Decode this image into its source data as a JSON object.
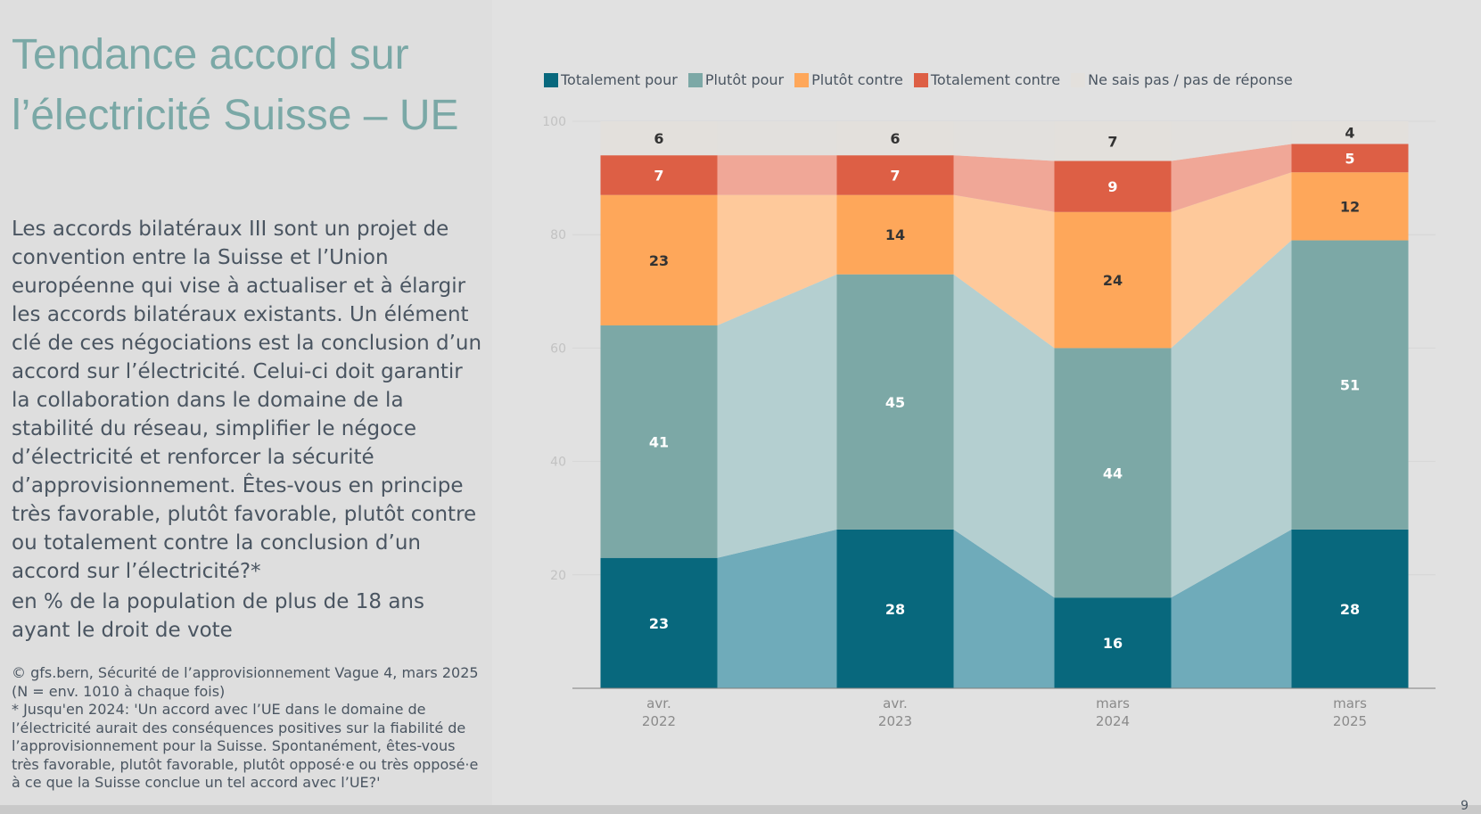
{
  "slide": {
    "title": "Tendance accord sur l’électricité Suisse – UE",
    "description": "Les accords bilatéraux III sont un projet de convention entre la Suisse et l’Union européenne qui vise à actualiser et à élargir les accords bilatéraux existants. Un élément clé de ces négociations est la conclusion d’un accord sur l’électricité. Celui-ci doit garantir la collaboration dans le domaine de la stabilité du réseau, simplifier le négoce d’électricité et renforcer la sécurité d’approvisionnement. Êtes-vous en principe très favorable, plutôt favorable, plutôt contre ou totalement contre la conclusion d’un accord sur l’électricité?*",
    "population_note": "en % de la population de plus de 18 ans ayant le droit de vote",
    "source_lines": [
      "© gfs.bern, Sécurité de l’approvisionnement Vague 4, mars 2025",
      "(N = env. 1010 à chaque fois)",
      "* Jusqu'en 2024: 'Un accord avec l’UE dans le domaine de l’électricité aurait des conséquences positives sur la fiabilité de l’approvisionnement pour la Suisse. Spontanément, êtes-vous très favorable, plutôt favorable, plutôt opposé·e ou très opposé·e à ce que la Suisse conclue un tel accord avec l’UE?'"
    ],
    "page_number": "9"
  },
  "chart_data": {
    "type": "bar",
    "stacked": true,
    "categories": [
      "avr.\n2022",
      "avr.\n2023",
      "mars\n2024",
      "mars\n2025"
    ],
    "series": [
      {
        "name": "Totalement pour",
        "color": "#08687d",
        "band_color": "#6fabba",
        "label_color": "#ffffff",
        "values": [
          23,
          28,
          16,
          28
        ]
      },
      {
        "name": "Plutôt pour",
        "color": "#7ca8a6",
        "band_color": "#b4cfd0",
        "label_color": "#ffffff",
        "values": [
          41,
          45,
          44,
          51
        ]
      },
      {
        "name": "Plutôt contre",
        "color": "#fea75a",
        "band_color": "#fec99b",
        "label_color": "#333333",
        "values": [
          23,
          14,
          24,
          12
        ]
      },
      {
        "name": "Totalement contre",
        "color": "#dd5f45",
        "band_color": "#f0a797",
        "label_color": "#ffffff",
        "values": [
          7,
          7,
          9,
          5
        ]
      },
      {
        "name": "Ne sais pas / pas de réponse",
        "color": "#e3e0dc",
        "band_color": "#e2e0dd",
        "label_color": "#333333",
        "values": [
          6,
          6,
          7,
          4
        ]
      }
    ],
    "yticks": [
      20,
      40,
      60,
      80,
      100
    ],
    "ylim": [
      0,
      100
    ],
    "grid": true,
    "legend_position": "top"
  }
}
